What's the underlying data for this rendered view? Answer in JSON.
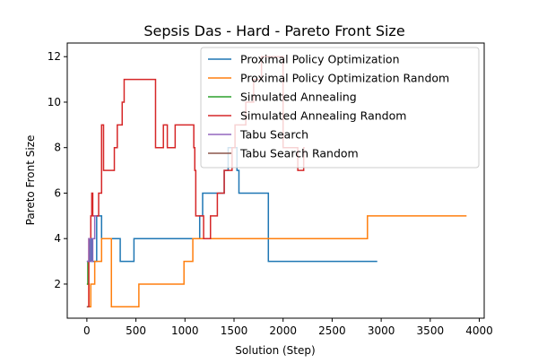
{
  "chart_data": {
    "type": "line",
    "title": "Sepsis Das - Hard - Pareto Front Size",
    "xlabel": "Solution (Step)",
    "ylabel": "Pareto Front Size",
    "xlim": [
      -200,
      4050
    ],
    "ylim": [
      0.5,
      12.6
    ],
    "x_ticks": [
      0,
      500,
      1000,
      1500,
      2000,
      2500,
      3000,
      3500,
      4000
    ],
    "y_ticks": [
      2,
      4,
      6,
      8,
      10,
      12
    ],
    "grid": false,
    "legend_position": "top-right",
    "series": [
      {
        "name": "Proximal Policy Optimization",
        "color": "#1f77b4",
        "points": [
          [
            0,
            3
          ],
          [
            30,
            3
          ],
          [
            30,
            4
          ],
          [
            50,
            4
          ],
          [
            50,
            3
          ],
          [
            100,
            3
          ],
          [
            100,
            5
          ],
          [
            150,
            5
          ],
          [
            150,
            4
          ],
          [
            340,
            4
          ],
          [
            340,
            3
          ],
          [
            480,
            3
          ],
          [
            480,
            4
          ],
          [
            1150,
            4
          ],
          [
            1150,
            5
          ],
          [
            1180,
            5
          ],
          [
            1180,
            6
          ],
          [
            1400,
            6
          ],
          [
            1400,
            7
          ],
          [
            1440,
            7
          ],
          [
            1440,
            8
          ],
          [
            1530,
            8
          ],
          [
            1530,
            7
          ],
          [
            1550,
            7
          ],
          [
            1550,
            6
          ],
          [
            1850,
            6
          ],
          [
            1850,
            3
          ],
          [
            2960,
            3
          ]
        ]
      },
      {
        "name": "Proximal Policy Optimization Random",
        "color": "#ff7f0e",
        "points": [
          [
            0,
            2
          ],
          [
            20,
            2
          ],
          [
            20,
            1
          ],
          [
            40,
            1
          ],
          [
            40,
            2
          ],
          [
            80,
            2
          ],
          [
            80,
            3
          ],
          [
            150,
            3
          ],
          [
            150,
            4
          ],
          [
            250,
            4
          ],
          [
            250,
            1
          ],
          [
            530,
            1
          ],
          [
            530,
            2
          ],
          [
            990,
            2
          ],
          [
            990,
            3
          ],
          [
            1080,
            3
          ],
          [
            1080,
            4
          ],
          [
            2860,
            4
          ],
          [
            2860,
            5
          ],
          [
            3870,
            5
          ]
        ]
      },
      {
        "name": "Simulated Annealing",
        "color": "#2ca02c",
        "points": [
          [
            0,
            2
          ],
          [
            10,
            2
          ],
          [
            10,
            3
          ],
          [
            20,
            3
          ]
        ]
      },
      {
        "name": "Simulated Annealing Random",
        "color": "#d62728",
        "points": [
          [
            0,
            1
          ],
          [
            20,
            1
          ],
          [
            20,
            4
          ],
          [
            40,
            4
          ],
          [
            40,
            5
          ],
          [
            50,
            5
          ],
          [
            50,
            6
          ],
          [
            60,
            6
          ],
          [
            60,
            5
          ],
          [
            120,
            5
          ],
          [
            120,
            6
          ],
          [
            150,
            6
          ],
          [
            150,
            9
          ],
          [
            170,
            9
          ],
          [
            170,
            7
          ],
          [
            280,
            7
          ],
          [
            280,
            8
          ],
          [
            310,
            8
          ],
          [
            310,
            9
          ],
          [
            360,
            9
          ],
          [
            360,
            10
          ],
          [
            380,
            10
          ],
          [
            380,
            11
          ],
          [
            700,
            11
          ],
          [
            700,
            8
          ],
          [
            780,
            8
          ],
          [
            780,
            9
          ],
          [
            820,
            9
          ],
          [
            820,
            8
          ],
          [
            900,
            8
          ],
          [
            900,
            9
          ],
          [
            1090,
            9
          ],
          [
            1090,
            8
          ],
          [
            1100,
            8
          ],
          [
            1100,
            7
          ],
          [
            1110,
            7
          ],
          [
            1110,
            5
          ],
          [
            1190,
            5
          ],
          [
            1190,
            4
          ],
          [
            1260,
            4
          ],
          [
            1260,
            5
          ],
          [
            1330,
            5
          ],
          [
            1330,
            6
          ],
          [
            1400,
            6
          ],
          [
            1400,
            7
          ],
          [
            1480,
            7
          ],
          [
            1480,
            8
          ],
          [
            1510,
            8
          ],
          [
            1510,
            9
          ],
          [
            1620,
            9
          ],
          [
            1620,
            10
          ],
          [
            1700,
            10
          ],
          [
            1700,
            11
          ],
          [
            1780,
            11
          ],
          [
            1780,
            12
          ],
          [
            2000,
            12
          ],
          [
            2000,
            8
          ],
          [
            2150,
            8
          ],
          [
            2150,
            7
          ],
          [
            2210,
            7
          ],
          [
            2210,
            8
          ],
          [
            2220,
            8
          ]
        ]
      },
      {
        "name": "Tabu Search",
        "color": "#9467bd",
        "points": [
          [
            0,
            3
          ],
          [
            20,
            3
          ],
          [
            20,
            4
          ],
          [
            40,
            4
          ],
          [
            40,
            3
          ],
          [
            60,
            3
          ],
          [
            60,
            4
          ],
          [
            80,
            4
          ],
          [
            80,
            5
          ],
          [
            100,
            5
          ]
        ]
      },
      {
        "name": "Tabu Search Random",
        "color": "#8c564b",
        "points": [
          [
            0,
            1
          ],
          [
            15,
            1
          ]
        ]
      }
    ]
  }
}
